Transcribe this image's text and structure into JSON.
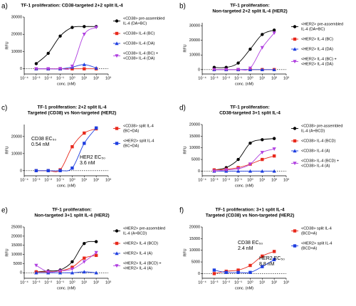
{
  "chart_data": [
    {
      "type": "line",
      "panel": "a)",
      "title": [
        "TF-1 proliferation: CD38-targeted 2+2 split IL-4"
      ],
      "xlabel": "conc. (nM)",
      "ylabel": "RFU",
      "log_x": true,
      "x": [
        0.001,
        0.01,
        0.1,
        1,
        10,
        100
      ],
      "xlim": [
        0.0001,
        1000
      ],
      "xticks": [
        {
          "value": 0.0001,
          "label": "10⁻⁴"
        },
        {
          "value": 0.001,
          "label": "10⁻³"
        },
        {
          "value": 0.01,
          "label": "10⁻²"
        },
        {
          "value": 0.1,
          "label": "10⁻¹"
        },
        {
          "value": 1,
          "label": "10⁰"
        },
        {
          "value": 10,
          "label": "10¹"
        },
        {
          "value": 100,
          "label": "10²"
        },
        {
          "value": 1000,
          "label": "10³"
        }
      ],
      "ylim": [
        -3000,
        30000
      ],
      "yticks": [
        0,
        10000,
        20000,
        30000
      ],
      "series": [
        {
          "name": [
            "<CD38> pre-assembled",
            "IL-4 (DA+BC)"
          ],
          "color": "#000000",
          "marker": "circle",
          "values": [
            3000,
            9000,
            19000,
            24000,
            24500,
            24500
          ]
        },
        {
          "name": [
            "<CD38> IL-4 (BC)"
          ],
          "color": "#e8291c",
          "marker": "square",
          "values": [
            0,
            0,
            0,
            0,
            0,
            0
          ]
        },
        {
          "name": [
            "<CD38> IL-4 (DA)"
          ],
          "color": "#1f3fe0",
          "marker": "triangle",
          "values": [
            0,
            0,
            0,
            1000,
            2500,
            500
          ]
        },
        {
          "name": [
            "<CD38> IL-4 (BC) +",
            "<CD38> IL-4 (DA)"
          ],
          "color": "#b040e0",
          "marker": "triangle-down",
          "values": [
            0,
            0,
            100,
            1500,
            20000,
            24000
          ]
        }
      ]
    },
    {
      "type": "line",
      "panel": "b)",
      "title": [
        "TF-1 proliferation:",
        "Non-targeted 2+2 split IL-4 (HER2)"
      ],
      "xlabel": "conc. (nM)",
      "ylabel": "RFU",
      "log_x": true,
      "x": [
        0.001,
        0.01,
        0.1,
        1,
        10,
        100
      ],
      "xlim": [
        0.0001,
        1000
      ],
      "xticks": [
        {
          "value": 0.0001,
          "label": "10⁻⁴"
        },
        {
          "value": 0.001,
          "label": "10⁻³"
        },
        {
          "value": 0.01,
          "label": "10⁻²"
        },
        {
          "value": 0.1,
          "label": "10⁻¹"
        },
        {
          "value": 1,
          "label": "10⁰"
        },
        {
          "value": 10,
          "label": "10¹"
        },
        {
          "value": 100,
          "label": "10²"
        },
        {
          "value": 1000,
          "label": "10³"
        }
      ],
      "ylim": [
        -3000,
        32000
      ],
      "yticks": [
        0,
        10000,
        20000,
        30000
      ],
      "series": [
        {
          "name": [
            "<HER2> pre-assembled",
            "IL-4 (DA+BC)"
          ],
          "color": "#000000",
          "marker": "circle",
          "values": [
            1500,
            1500,
            4500,
            14000,
            24000,
            27000
          ]
        },
        {
          "name": [
            "<HER2> IL-4 (BC)"
          ],
          "color": "#e8291c",
          "marker": "square",
          "values": [
            0,
            0,
            0,
            0,
            0,
            0
          ]
        },
        {
          "name": [
            "<HER2> IL-4 (DA)"
          ],
          "color": "#1f3fe0",
          "marker": "triangle",
          "values": [
            0,
            0,
            0,
            0,
            0,
            0
          ]
        },
        {
          "name": [
            "<HER2> IL-4 (BC) +",
            "<HER2> IL-4 (DA)"
          ],
          "color": "#b040e0",
          "marker": "triangle-down",
          "values": [
            0,
            0,
            0,
            1000,
            15000,
            25000
          ]
        }
      ]
    },
    {
      "type": "line",
      "panel": "c)",
      "title": [
        "TF-1 proliferation: 2+2 split IL-4",
        "Targeted (CD38) vs Non-targeted (HER2)"
      ],
      "xlabel": "conc. (nM)",
      "ylabel": "RFU",
      "log_x": true,
      "x": [
        0.001,
        0.01,
        0.1,
        1,
        10,
        100
      ],
      "xlim": [
        0.0001,
        1000
      ],
      "xticks": [
        {
          "value": 0.0001,
          "label": "10⁻⁴"
        },
        {
          "value": 0.001,
          "label": "10⁻³"
        },
        {
          "value": 0.01,
          "label": "10⁻²"
        },
        {
          "value": 0.1,
          "label": "10⁻¹"
        },
        {
          "value": 1,
          "label": "10⁰"
        },
        {
          "value": 10,
          "label": "10¹"
        },
        {
          "value": 100,
          "label": "10²"
        },
        {
          "value": 1000,
          "label": "10³"
        }
      ],
      "ylim": [
        -3000,
        27000
      ],
      "yticks": [
        0,
        10000,
        20000
      ],
      "series": [
        {
          "name": [
            "<CD38> split IL-4",
            "(BC+DA)"
          ],
          "color": "#e8291c",
          "marker": "square",
          "values": [
            0,
            0,
            500,
            14000,
            22000,
            24500
          ]
        },
        {
          "name": [
            "<HER2> split IL-4",
            "(BC+DA)"
          ],
          "color": "#1f3fe0",
          "marker": "square",
          "values": [
            0,
            0,
            0,
            1500,
            16000,
            25000
          ]
        }
      ],
      "annotations": [
        {
          "text": [
            "CD38 EC₅₀",
            "0.54 nM"
          ],
          "color": "#e8291c"
        },
        {
          "text": [
            "HER2 EC₅₀",
            "3.6 nM"
          ],
          "color": "#1f3fe0"
        }
      ]
    },
    {
      "type": "line",
      "panel": "d)",
      "title": [
        "TF-1 proliferation:",
        "CD38-targeted 3+1 split IL-4"
      ],
      "xlabel": "conc. (nM)",
      "ylabel": "RFU",
      "log_x": true,
      "x": [
        0.001,
        0.01,
        0.1,
        1,
        10,
        100
      ],
      "xlim": [
        0.0001,
        1000
      ],
      "xticks": [
        {
          "value": 0.0001,
          "label": "10⁻⁴"
        },
        {
          "value": 0.001,
          "label": "10⁻³"
        },
        {
          "value": 0.01,
          "label": "10⁻²"
        },
        {
          "value": 0.1,
          "label": "10⁻¹"
        },
        {
          "value": 1,
          "label": "10⁰"
        },
        {
          "value": 10,
          "label": "10¹"
        },
        {
          "value": 100,
          "label": "10²"
        },
        {
          "value": 1000,
          "label": "10³"
        }
      ],
      "ylim": [
        -2000,
        20000
      ],
      "yticks": [
        0,
        5000,
        10000,
        15000,
        20000
      ],
      "series": [
        {
          "name": [
            "<CD38> pre-assembled",
            "IL-4 (A+BCD)"
          ],
          "color": "#000000",
          "marker": "circle",
          "values": [
            500,
            1500,
            5000,
            12000,
            13500,
            14000
          ]
        },
        {
          "name": [
            "<CD38> IL-4 (BCD)"
          ],
          "color": "#e8291c",
          "marker": "square",
          "values": [
            500,
            800,
            1500,
            3000,
            5000,
            6500
          ]
        },
        {
          "name": [
            "<CD38> IL-4 (A)"
          ],
          "color": "#1f3fe0",
          "marker": "triangle",
          "values": [
            0,
            0,
            0,
            0,
            0,
            0
          ]
        },
        {
          "name": [
            "<CD38> IL-4 (BCD) +",
            "<CD38> IL-4 (A)"
          ],
          "color": "#b040e0",
          "marker": "triangle-down",
          "values": [
            0,
            500,
            1000,
            3000,
            8000,
            9500
          ]
        }
      ]
    },
    {
      "type": "line",
      "panel": "e)",
      "title": [
        "TF-1 proliferation:",
        "Non-targeted 3+1 split IL-4 (HER2)"
      ],
      "xlabel": "conc. (nM)",
      "ylabel": "RFU",
      "log_x": true,
      "x": [
        0.001,
        0.01,
        0.1,
        1,
        10,
        100
      ],
      "xlim": [
        0.0001,
        1000
      ],
      "xticks": [
        {
          "value": 0.0001,
          "label": "10⁻⁴"
        },
        {
          "value": 0.001,
          "label": "10⁻³"
        },
        {
          "value": 0.01,
          "label": "10⁻²"
        },
        {
          "value": 0.1,
          "label": "10⁻¹"
        },
        {
          "value": 1,
          "label": "10⁰"
        },
        {
          "value": 10,
          "label": "10¹"
        },
        {
          "value": 100,
          "label": "10²"
        },
        {
          "value": 1000,
          "label": "10³"
        }
      ],
      "ylim": [
        -3000,
        25000
      ],
      "yticks": [
        0,
        5000,
        10000,
        15000,
        20000,
        25000
      ],
      "series": [
        {
          "name": [
            "<HER2> pre-assembled",
            "IL-4 (A+BCD)"
          ],
          "color": "#000000",
          "marker": "circle",
          "values": [
            500,
            1000,
            1500,
            6000,
            16000,
            17000
          ]
        },
        {
          "name": [
            "<HER2> IL-4 (BCD)"
          ],
          "color": "#e8291c",
          "marker": "square",
          "values": [
            500,
            500,
            1000,
            3000,
            8000,
            9500
          ]
        },
        {
          "name": [
            "<HER2> IL-4 (A)"
          ],
          "color": "#1f3fe0",
          "marker": "triangle",
          "values": [
            0,
            0,
            0,
            0,
            500,
            0
          ]
        },
        {
          "name": [
            "<HER2> IL-4 (BCD) +",
            "<HER2> IL-4 (A)"
          ],
          "color": "#b040e0",
          "marker": "triangle-down",
          "values": [
            4000,
            500,
            1000,
            2000,
            6000,
            11000
          ]
        }
      ]
    },
    {
      "type": "line",
      "panel": "f)",
      "title": [
        "TF-1 proliferation: 3+1 split IL-4",
        "Targeted (CD38) vs Non-targeted (HER2)"
      ],
      "xlabel": "conc. (nM)",
      "ylabel": "RFU",
      "log_x": true,
      "x": [
        0.001,
        0.01,
        0.1,
        1,
        10,
        100
      ],
      "xlim": [
        0.0001,
        1000
      ],
      "xticks": [
        {
          "value": 0.0001,
          "label": "10⁻⁴"
        },
        {
          "value": 0.001,
          "label": "10⁻³"
        },
        {
          "value": 0.01,
          "label": "10⁻²"
        },
        {
          "value": 0.1,
          "label": "10⁻¹"
        },
        {
          "value": 1,
          "label": "10⁰"
        },
        {
          "value": 10,
          "label": "10¹"
        },
        {
          "value": 100,
          "label": "10²"
        },
        {
          "value": 1000,
          "label": "10³"
        }
      ],
      "ylim": [
        -2000,
        20000
      ],
      "yticks": [
        0,
        5000,
        10000,
        15000,
        20000
      ],
      "series": [
        {
          "name": [
            "<CD38> split IL-4",
            "(BCD+A)"
          ],
          "color": "#e8291c",
          "marker": "square",
          "values": [
            0,
            1000,
            1500,
            3500,
            7500,
            9500
          ]
        },
        {
          "name": [
            "<HER2> split IL-4",
            "(BCD+A)"
          ],
          "color": "#1f3fe0",
          "marker": "square",
          "values": [
            1500,
            500,
            500,
            500,
            3000,
            6000
          ]
        }
      ],
      "annotations": [
        {
          "text": [
            "CD38 EC₅₀",
            "2.4 nM"
          ],
          "color": "#e8291c"
        },
        {
          "text": [
            "HER2 EC₅₀",
            "8.8 nM"
          ],
          "color": "#1f3fe0"
        }
      ]
    }
  ]
}
